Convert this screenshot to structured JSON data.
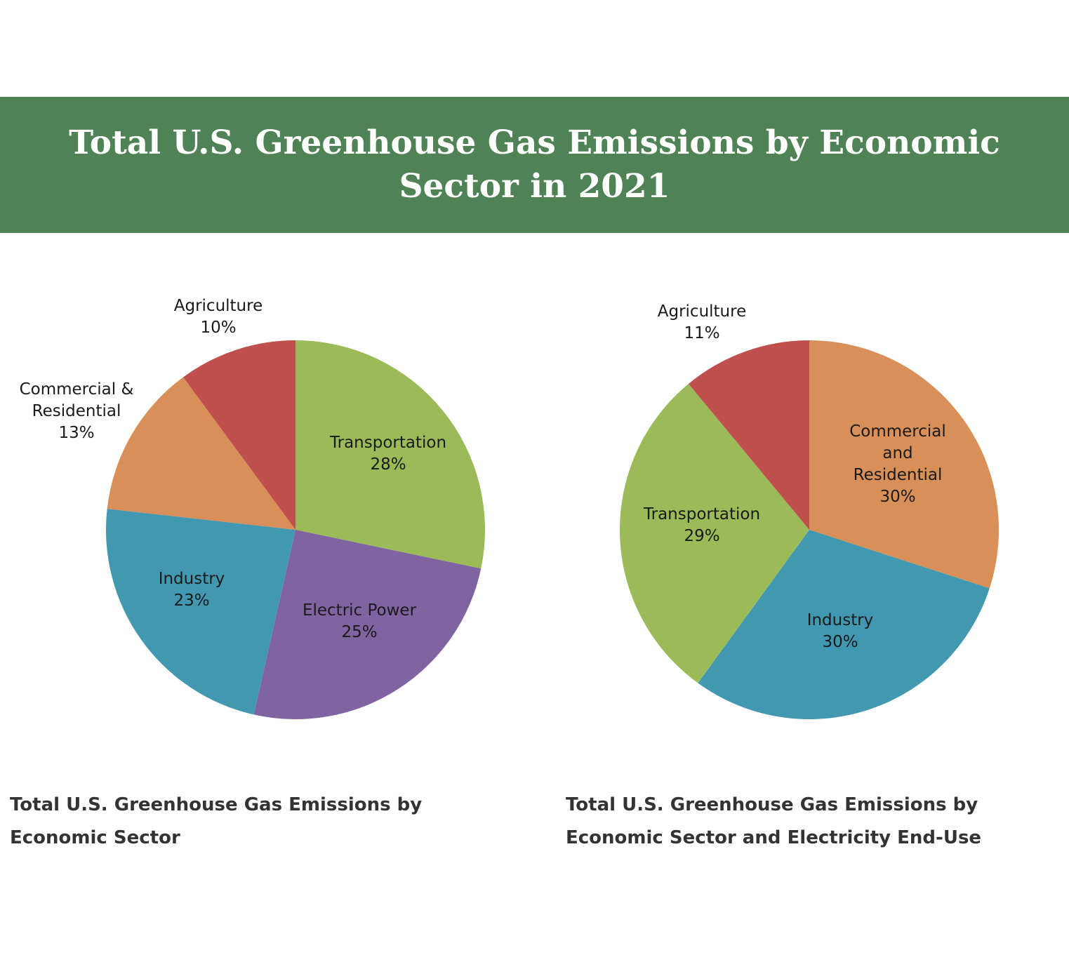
{
  "page": {
    "title": "Total U.S. Greenhouse Gas Emissions by Economic Sector in 2021",
    "banner_color": "#4f8255"
  },
  "chart_data": [
    {
      "type": "pie",
      "caption": "Total U.S. Greenhouse Gas Emissions by Economic Sector",
      "slices": [
        {
          "name": "Transportation",
          "value": 28,
          "value_label": "28%",
          "color": "#9bbb59"
        },
        {
          "name": "Electric Power",
          "value": 25,
          "value_label": "25%",
          "color": "#8064a2"
        },
        {
          "name": "Industry",
          "value": 23,
          "value_label": "23%",
          "color": "#4198b0"
        },
        {
          "name": "Commercial & Residential",
          "name_lines": [
            "Commercial &",
            "Residential"
          ],
          "value": 13,
          "value_label": "13%",
          "color": "#d99058"
        },
        {
          "name": "Agriculture",
          "value": 10,
          "value_label": "10%",
          "color": "#c0504d"
        }
      ]
    },
    {
      "type": "pie",
      "caption": "Total U.S. Greenhouse Gas Emissions by Economic Sector and Electricity End-Use",
      "slices": [
        {
          "name": "Commercial and Residential",
          "name_lines": [
            "Commercial",
            "and",
            "Residential"
          ],
          "value": 30,
          "value_label": "30%",
          "color": "#d99058"
        },
        {
          "name": "Industry",
          "value": 30,
          "value_label": "30%",
          "color": "#4198b0"
        },
        {
          "name": "Transportation",
          "value": 29,
          "value_label": "29%",
          "color": "#9bbb59"
        },
        {
          "name": "Agriculture",
          "value": 11,
          "value_label": "11%",
          "color": "#c0504d"
        }
      ]
    }
  ]
}
